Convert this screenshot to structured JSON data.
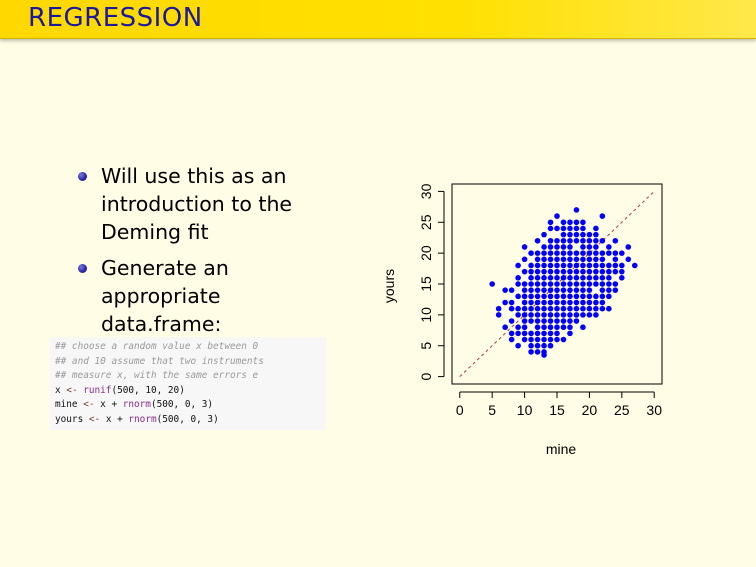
{
  "header": {
    "title": "REGRESSION"
  },
  "bullets": [
    {
      "text": "Will use this as an introduction to the Deming fit"
    },
    {
      "text": "Generate an appropriate data.frame:"
    }
  ],
  "code": {
    "comment1": "## choose a random value x between 0",
    "comment2": "## and 10 assume that two instruments",
    "comment3": "## measure x, with the same errors e",
    "line4": {
      "var": "x",
      "op": " <- ",
      "fn": "runif",
      "args": "(500, 10, 20)"
    },
    "line5": {
      "var": "mine",
      "op": " <- ",
      "x": "x + ",
      "fn": "rnorm",
      "args": "(500, 0, 3)"
    },
    "line6": {
      "var": "yours",
      "op": " <- ",
      "x": "x + ",
      "fn": "rnorm",
      "args": "(500, 0, 3)"
    }
  },
  "colors": {
    "header_text": "#1a1aa0",
    "points": "#0000ff",
    "reference_line": "#b03a3a",
    "background": "#fffde6"
  },
  "chart_data": {
    "type": "scatter",
    "title": "",
    "xlabel": "mine",
    "ylabel": "yours",
    "xlim": [
      -1.2,
      31.2
    ],
    "ylim": [
      -1.2,
      31.2
    ],
    "xticks": [
      0,
      5,
      10,
      15,
      20,
      25,
      30
    ],
    "yticks": [
      0,
      5,
      10,
      15,
      20,
      25,
      30
    ],
    "grid": false,
    "reference_line": {
      "type": "y=x",
      "style": "dashed"
    },
    "points": [
      [
        5,
        15
      ],
      [
        6,
        10
      ],
      [
        7,
        8
      ],
      [
        7,
        12
      ],
      [
        8,
        6
      ],
      [
        8,
        9
      ],
      [
        8,
        14
      ],
      [
        9,
        5
      ],
      [
        9,
        8
      ],
      [
        9,
        11
      ],
      [
        9,
        16
      ],
      [
        9,
        18
      ],
      [
        10,
        6
      ],
      [
        10,
        8
      ],
      [
        10,
        10
      ],
      [
        10,
        12
      ],
      [
        10,
        14
      ],
      [
        10,
        17
      ],
      [
        10,
        21
      ],
      [
        11,
        4
      ],
      [
        11,
        5
      ],
      [
        11,
        7
      ],
      [
        11,
        9
      ],
      [
        11,
        11
      ],
      [
        11,
        13
      ],
      [
        11,
        15
      ],
      [
        11,
        18
      ],
      [
        12,
        6
      ],
      [
        12,
        8
      ],
      [
        12,
        10
      ],
      [
        12,
        12
      ],
      [
        12,
        14
      ],
      [
        12,
        16
      ],
      [
        12,
        19
      ],
      [
        12,
        22
      ],
      [
        13,
        5
      ],
      [
        13,
        7
      ],
      [
        13,
        9
      ],
      [
        13,
        11
      ],
      [
        13,
        13
      ],
      [
        13,
        15
      ],
      [
        13,
        17
      ],
      [
        13,
        20
      ],
      [
        13,
        23
      ],
      [
        14,
        6
      ],
      [
        14,
        8
      ],
      [
        14,
        10
      ],
      [
        14,
        12
      ],
      [
        14,
        14
      ],
      [
        14,
        16
      ],
      [
        14,
        18
      ],
      [
        14,
        21
      ],
      [
        14,
        24
      ],
      [
        15,
        7
      ],
      [
        15,
        9
      ],
      [
        15,
        11
      ],
      [
        15,
        13
      ],
      [
        15,
        15
      ],
      [
        15,
        17
      ],
      [
        15,
        19
      ],
      [
        15,
        22
      ],
      [
        15,
        26
      ],
      [
        16,
        8
      ],
      [
        16,
        10
      ],
      [
        16,
        12
      ],
      [
        16,
        14
      ],
      [
        16,
        16
      ],
      [
        16,
        18
      ],
      [
        16,
        20
      ],
      [
        16,
        23
      ],
      [
        17,
        9
      ],
      [
        17,
        11
      ],
      [
        17,
        13
      ],
      [
        17,
        15
      ],
      [
        17,
        17
      ],
      [
        17,
        19
      ],
      [
        17,
        21
      ],
      [
        17,
        24
      ],
      [
        18,
        10
      ],
      [
        18,
        12
      ],
      [
        18,
        14
      ],
      [
        18,
        16
      ],
      [
        18,
        18
      ],
      [
        18,
        20
      ],
      [
        18,
        22
      ],
      [
        18,
        25
      ],
      [
        19,
        11
      ],
      [
        19,
        13
      ],
      [
        19,
        15
      ],
      [
        19,
        17
      ],
      [
        19,
        19
      ],
      [
        19,
        21
      ],
      [
        19,
        23
      ],
      [
        20,
        10
      ],
      [
        20,
        12
      ],
      [
        20,
        14
      ],
      [
        20,
        16
      ],
      [
        20,
        18
      ],
      [
        20,
        20
      ],
      [
        20,
        22
      ],
      [
        21,
        12
      ],
      [
        21,
        15
      ],
      [
        21,
        17
      ],
      [
        21,
        19
      ],
      [
        21,
        21
      ],
      [
        21,
        24
      ],
      [
        22,
        11
      ],
      [
        22,
        14
      ],
      [
        22,
        16
      ],
      [
        22,
        18
      ],
      [
        22,
        20
      ],
      [
        22,
        26
      ],
      [
        23,
        13
      ],
      [
        23,
        15
      ],
      [
        23,
        18
      ],
      [
        23,
        21
      ],
      [
        24,
        14
      ],
      [
        24,
        17
      ],
      [
        24,
        19
      ],
      [
        25,
        16
      ],
      [
        25,
        18
      ],
      [
        26,
        19
      ],
      [
        26,
        21
      ],
      [
        27,
        18
      ],
      [
        6,
        11
      ],
      [
        7,
        14
      ],
      [
        8,
        12
      ],
      [
        12,
        4
      ],
      [
        13,
        3.5
      ],
      [
        11,
        20
      ],
      [
        16,
        6
      ],
      [
        17,
        7
      ],
      [
        19,
        8
      ],
      [
        21,
        10
      ],
      [
        23,
        11
      ],
      [
        24,
        22
      ],
      [
        25,
        20
      ],
      [
        19,
        24
      ],
      [
        18,
        27
      ],
      [
        14,
        25
      ],
      [
        10,
        19
      ],
      [
        9,
        13
      ],
      [
        12,
        17
      ],
      [
        13,
        18
      ],
      [
        14,
        19
      ],
      [
        15,
        20
      ],
      [
        16,
        21
      ],
      [
        17,
        22
      ],
      [
        18,
        23
      ],
      [
        15,
        16
      ],
      [
        16,
        17
      ],
      [
        17,
        18
      ],
      [
        18,
        19
      ],
      [
        14,
        15
      ],
      [
        13,
        14
      ],
      [
        12,
        13
      ],
      [
        15,
        14
      ],
      [
        16,
        15
      ],
      [
        17,
        16
      ],
      [
        18,
        17
      ],
      [
        19,
        18
      ],
      [
        20,
        19
      ],
      [
        14,
        13
      ],
      [
        13,
        12
      ],
      [
        12,
        11
      ],
      [
        11,
        10
      ],
      [
        10,
        9
      ],
      [
        17,
        14
      ],
      [
        18,
        15
      ],
      [
        19,
        16
      ],
      [
        20,
        17
      ],
      [
        21,
        18
      ],
      [
        16,
        13
      ],
      [
        15,
        12
      ],
      [
        14,
        11
      ],
      [
        13,
        10
      ],
      [
        12,
        9
      ],
      [
        20,
        15
      ],
      [
        21,
        16
      ],
      [
        22,
        17
      ],
      [
        15,
        18
      ],
      [
        16,
        19
      ],
      [
        17,
        20
      ],
      [
        14,
        17
      ],
      [
        13,
        16
      ],
      [
        12,
        15
      ],
      [
        11,
        14
      ],
      [
        19,
        20
      ],
      [
        20,
        21
      ],
      [
        21,
        22
      ],
      [
        10,
        11
      ],
      [
        11,
        12
      ],
      [
        22,
        15
      ],
      [
        23,
        16
      ],
      [
        24,
        15
      ],
      [
        16,
        11
      ],
      [
        17,
        12
      ],
      [
        18,
        13
      ],
      [
        19,
        14
      ],
      [
        20,
        13
      ],
      [
        14,
        9
      ],
      [
        13,
        8
      ],
      [
        15,
        10
      ],
      [
        17,
        10
      ],
      [
        18,
        11
      ],
      [
        19,
        12
      ],
      [
        9,
        10
      ],
      [
        8,
        11
      ],
      [
        8,
        7
      ],
      [
        10,
        13
      ],
      [
        11,
        16
      ],
      [
        12,
        18
      ],
      [
        13,
        19
      ],
      [
        14,
        20
      ],
      [
        15,
        21
      ],
      [
        16,
        22
      ],
      [
        17,
        23
      ],
      [
        19,
        22
      ],
      [
        20,
        23
      ],
      [
        21,
        20
      ],
      [
        22,
        19
      ],
      [
        23,
        17
      ],
      [
        24,
        18
      ],
      [
        25,
        17
      ],
      [
        15,
        24
      ],
      [
        16,
        25
      ],
      [
        14,
        22
      ],
      [
        13,
        21
      ],
      [
        12,
        20
      ],
      [
        11,
        17
      ],
      [
        10,
        15
      ],
      [
        9,
        15
      ],
      [
        16,
        24
      ],
      [
        17,
        25
      ],
      [
        18,
        24
      ],
      [
        19,
        25
      ],
      [
        21,
        23
      ],
      [
        22,
        22
      ],
      [
        23,
        20
      ],
      [
        24,
        20
      ],
      [
        12,
        7
      ],
      [
        13,
        6
      ],
      [
        14,
        7
      ],
      [
        15,
        8
      ],
      [
        16,
        9
      ],
      [
        11,
        6
      ],
      [
        10,
        7
      ],
      [
        9,
        7
      ],
      [
        18,
        9
      ],
      [
        20,
        11
      ],
      [
        21,
        13
      ],
      [
        22,
        13
      ],
      [
        23,
        14
      ],
      [
        15,
        6
      ],
      [
        14,
        5
      ],
      [
        17,
        8
      ],
      [
        19,
        10
      ],
      [
        21,
        11
      ],
      [
        22,
        12
      ],
      [
        13,
        4
      ],
      [
        12,
        5
      ]
    ]
  }
}
